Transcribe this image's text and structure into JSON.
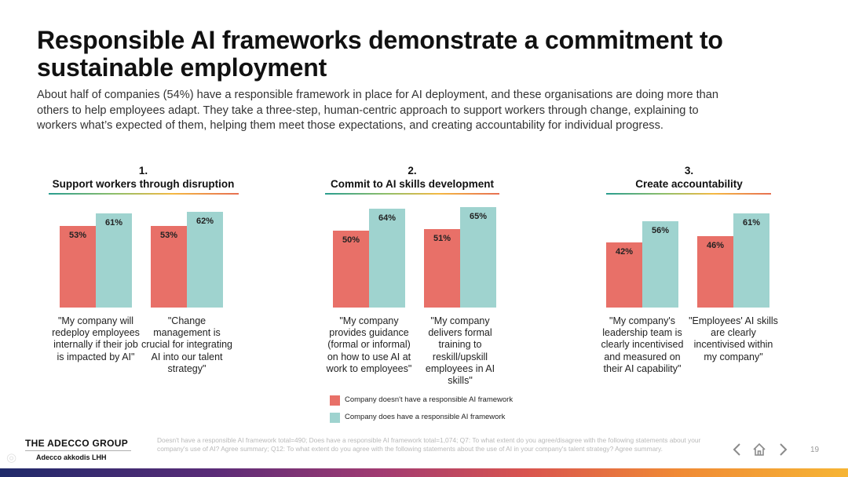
{
  "title": "Responsible AI frameworks demonstrate a commitment to sustainable employment",
  "intro": "About half of companies (54%) have a responsible framework in place for AI deployment, and these organisations are doing more than others to help employees adapt. They take a three-step, human-centric approach to support workers through change, explaining to workers what’s expected of them, helping them meet those expectations, and creating accountability for individual progress.",
  "groups": [
    {
      "number": "1.",
      "heading": "Support workers through disruption",
      "questions": [
        {
          "text": "\"My company will redeploy employees internally if their job is impacted by AI\"",
          "no_label": "53%",
          "yes_label": "61%"
        },
        {
          "text": "\"Change management is crucial for integrating AI into our talent strategy\"",
          "no_label": "53%",
          "yes_label": "62%"
        }
      ]
    },
    {
      "number": "2.",
      "heading": "Commit to AI skills development",
      "questions": [
        {
          "text": "\"My company provides guidance (formal or informal) on how to use AI at work to employees\"",
          "no_label": "50%",
          "yes_label": "64%"
        },
        {
          "text": "\"My company delivers formal training to reskill/upskill employees in AI skills\"",
          "no_label": "51%",
          "yes_label": "65%"
        }
      ]
    },
    {
      "number": "3.",
      "heading": "Create accountability",
      "questions": [
        {
          "text": "\"My company's leadership team is clearly incentivised and measured on their AI capability\"",
          "no_label": "42%",
          "yes_label": "56%"
        },
        {
          "text": "\"Employees' AI skills are clearly incentivised within my company\"",
          "no_label": "46%",
          "yes_label": "61%"
        }
      ]
    }
  ],
  "chart_data": {
    "type": "bar",
    "categories": [
      "\"My company will redeploy employees internally if their job is impacted by AI\"",
      "\"Change management is crucial for integrating AI into our talent strategy\"",
      "\"My company provides guidance (formal or informal) on how to use AI at work to employees\"",
      "\"My company delivers formal training to reskill/upskill employees in AI skills\"",
      "\"My company's leadership team is clearly incentivised and measured on their AI capability\"",
      "\"Employees' AI skills are clearly incentivised within my company\""
    ],
    "series": [
      {
        "name": "Company doesn't have a responsible AI framework",
        "values": [
          53,
          53,
          50,
          51,
          42,
          46
        ]
      },
      {
        "name": "Company does have a responsible AI framework",
        "values": [
          61,
          62,
          64,
          65,
          56,
          61
        ]
      }
    ],
    "ylim": [
      0,
      100
    ],
    "unit": "%"
  },
  "legend": [
    {
      "label": "Company doesn't have a responsible AI framework",
      "color": "#e87068"
    },
    {
      "label": "Company does have a responsible AI framework",
      "color": "#9fd3cf"
    }
  ],
  "footer": {
    "brand": "THE ADECCO GROUP",
    "brand_sub": "Adecco   akkodis   LHH",
    "source": "Doesn't have a responsible AI framework total=490; Does have a responsible AI framework total=1,074; Q7: To what extent do you agree/disagree with the following statements about your company's use of AI? Agree summary; Q12: To what extent do you agree with the following statements about the use of AI in your company's talent strategy? Agree summary.",
    "page_number": "19",
    "nav": {
      "prev_icon": "chevron-left-icon",
      "home_icon": "home-icon",
      "next_icon": "chevron-right-icon"
    }
  }
}
